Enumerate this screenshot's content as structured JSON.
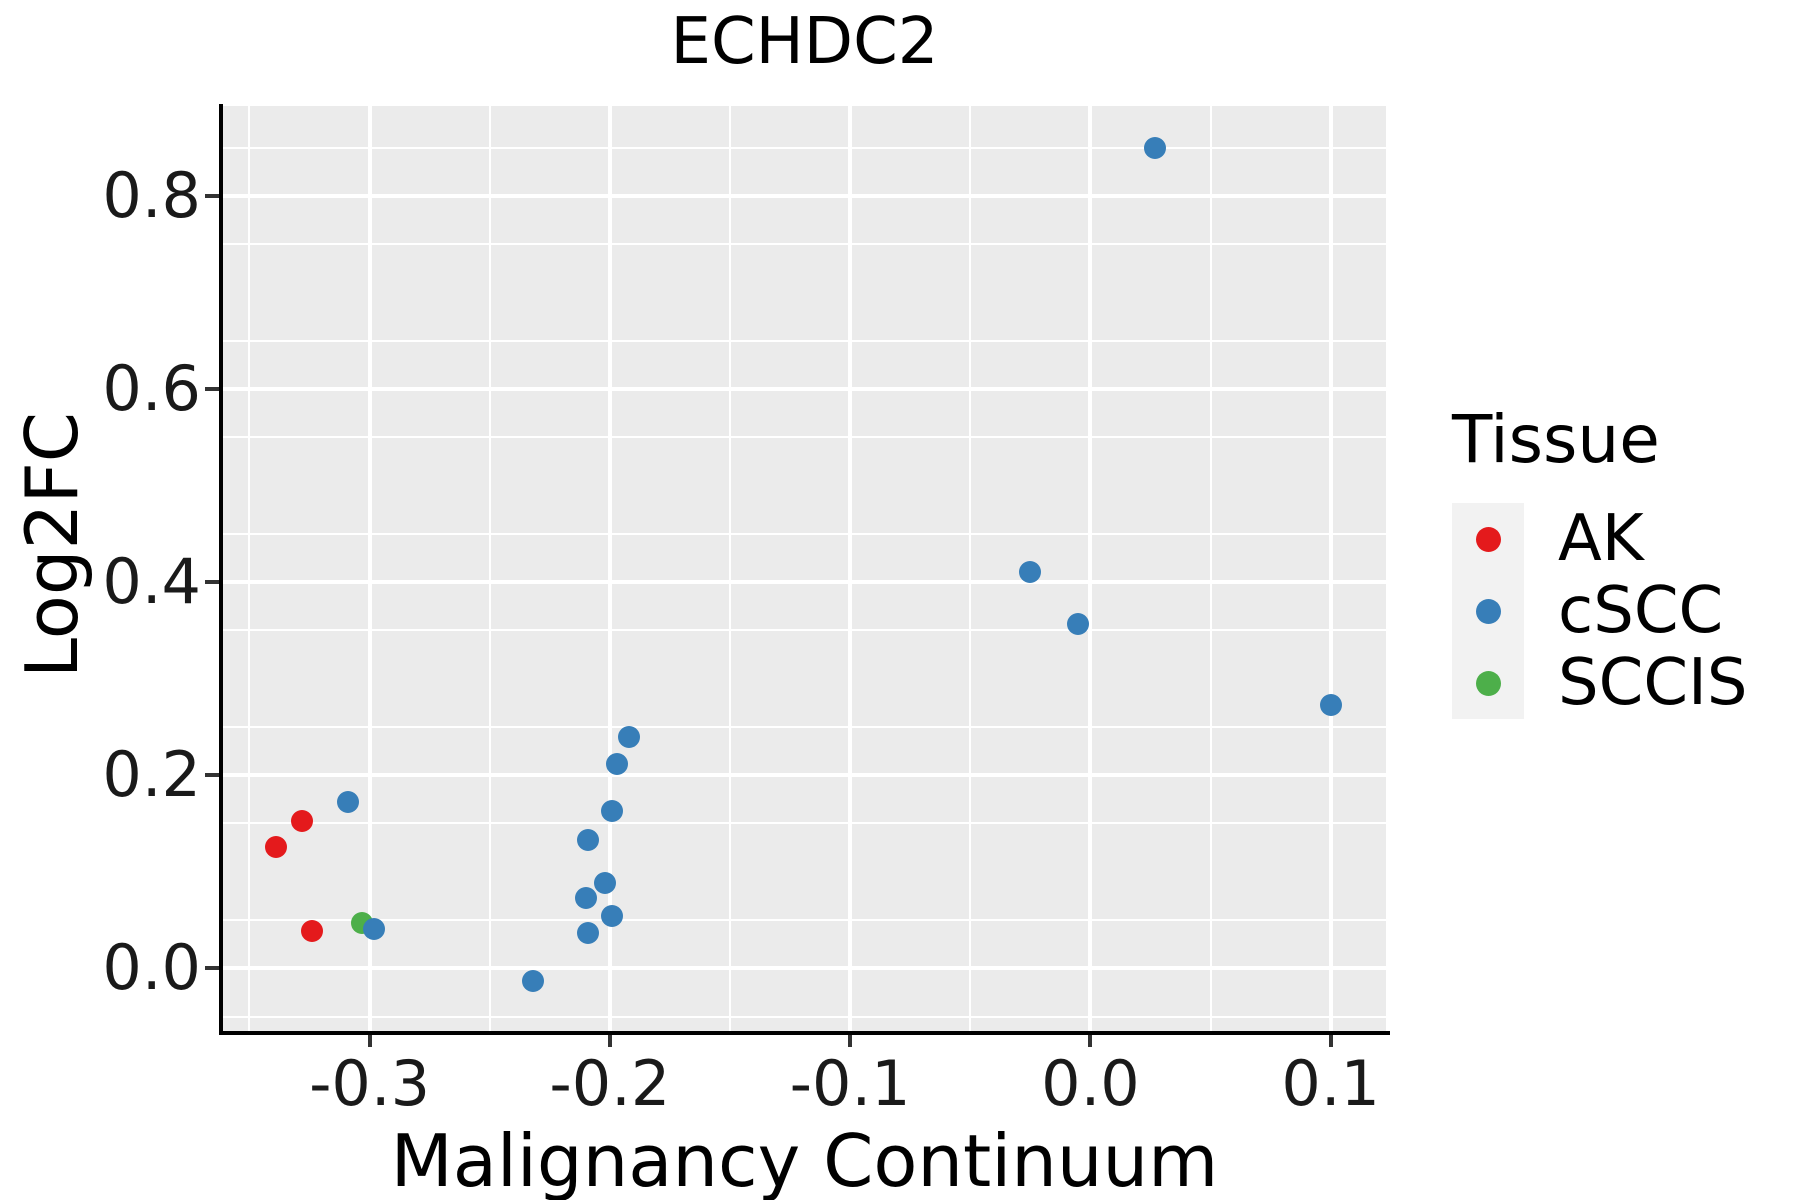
{
  "chart_data": {
    "type": "scatter",
    "title": "ECHDC2",
    "xlabel": "Malignancy Continuum",
    "ylabel": "Log2FC",
    "xlim": [
      -0.361,
      0.123
    ],
    "ylim": [
      -0.065,
      0.893
    ],
    "grid": true,
    "panel_bg": "#EBEBEB",
    "gridline_color": "#FFFFFF",
    "axis_line_color": "#000000",
    "tick_mark_color": "#333333",
    "point_radius": 11,
    "x_ticks": [
      {
        "value": -0.3,
        "label": "-0.3"
      },
      {
        "value": -0.2,
        "label": "-0.2"
      },
      {
        "value": -0.1,
        "label": "-0.1"
      },
      {
        "value": 0.0,
        "label": "0.0"
      },
      {
        "value": 0.1,
        "label": "0.1"
      }
    ],
    "y_ticks": [
      {
        "value": 0.0,
        "label": "0.0"
      },
      {
        "value": 0.2,
        "label": "0.2"
      },
      {
        "value": 0.4,
        "label": "0.4"
      },
      {
        "value": 0.6,
        "label": "0.6"
      },
      {
        "value": 0.8,
        "label": "0.8"
      }
    ],
    "x_minor_gridlines": [
      -0.35,
      -0.25,
      -0.15,
      -0.05,
      0.05
    ],
    "y_minor_gridlines": [
      -0.05,
      0.05,
      0.15,
      0.25,
      0.35,
      0.45,
      0.55,
      0.65,
      0.75,
      0.85
    ],
    "series": [
      {
        "name": "AK",
        "color": "#E41A1C",
        "points": [
          [
            -0.328,
            0.152
          ],
          [
            -0.339,
            0.126
          ],
          [
            -0.324,
            0.039
          ]
        ]
      },
      {
        "name": "SCCIS",
        "color": "#4DAF4A",
        "points": [
          [
            -0.303,
            0.047
          ]
        ]
      },
      {
        "name": "cSCC",
        "color": "#377EB8",
        "points": [
          [
            -0.309,
            0.172
          ],
          [
            -0.298,
            0.041
          ],
          [
            -0.232,
            -0.013
          ],
          [
            -0.192,
            0.24
          ],
          [
            -0.197,
            0.212
          ],
          [
            -0.199,
            0.163
          ],
          [
            -0.209,
            0.133
          ],
          [
            -0.202,
            0.088
          ],
          [
            -0.21,
            0.073
          ],
          [
            -0.199,
            0.054
          ],
          [
            -0.209,
            0.037
          ],
          [
            -0.025,
            0.41
          ],
          [
            -0.005,
            0.357
          ],
          [
            0.027,
            0.849
          ],
          [
            0.1,
            0.273
          ]
        ]
      }
    ],
    "legend": {
      "title": "Tissue",
      "position": "right",
      "key_bg": "#F2F2F2",
      "entries": [
        {
          "label": "AK",
          "color": "#E41A1C"
        },
        {
          "label": "cSCC",
          "color": "#377EB8"
        },
        {
          "label": "SCCIS",
          "color": "#4DAF4A"
        }
      ]
    }
  }
}
